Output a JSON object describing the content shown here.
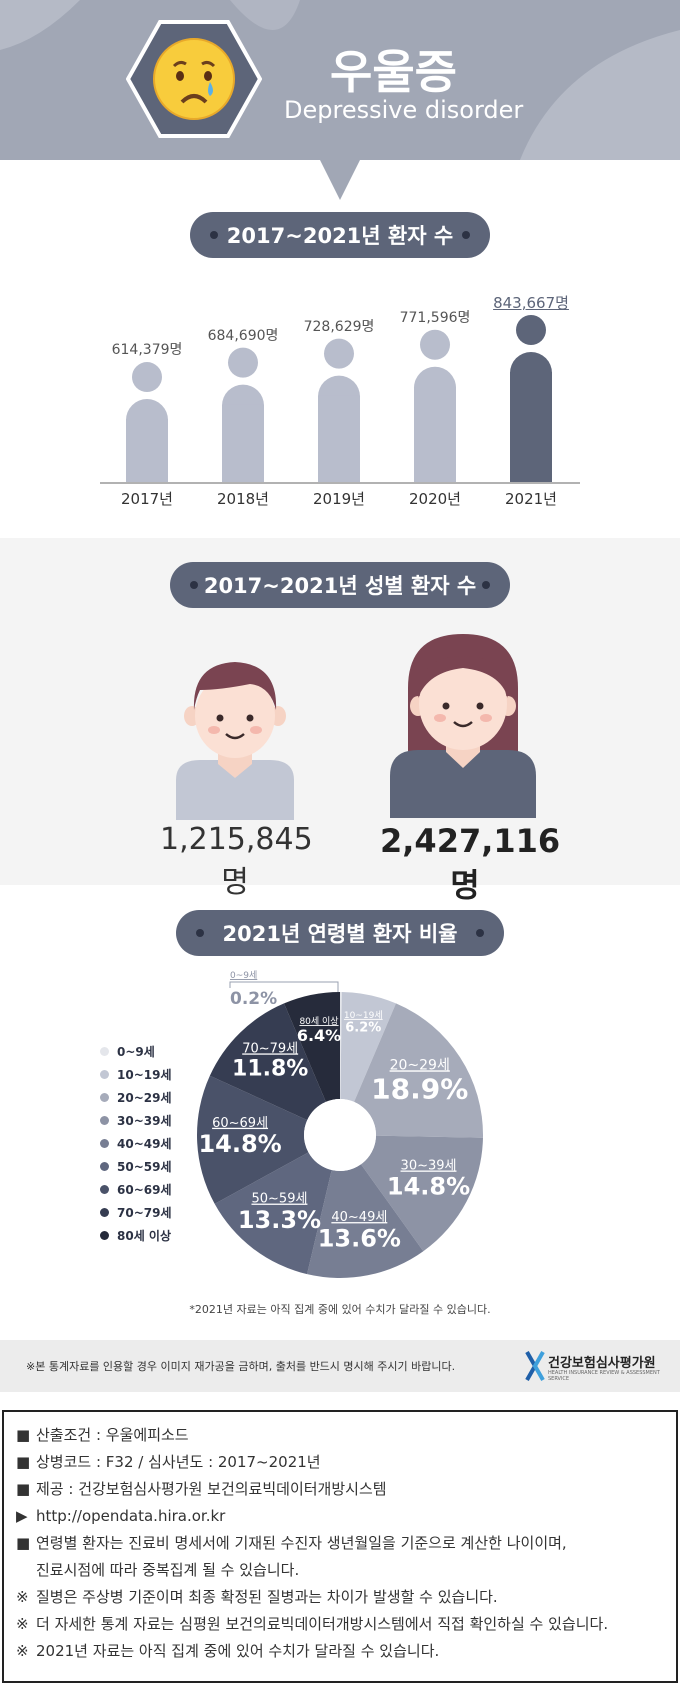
{
  "header": {
    "title_ko": "우울증",
    "title_en": "Depressive disorder",
    "emoji_icon": "crying-face-icon"
  },
  "sections": {
    "patients_title": "2017~2021년 환자 수",
    "gender_title": "2017~2021년 성별 환자 수",
    "age_title": "2021년 연령별 환자 비율"
  },
  "colors": {
    "header_bg": "#a1a7b5",
    "pill": "#5d6579",
    "bar": "#b8bdcc",
    "bar_highlight": "#5d6579"
  },
  "gender": {
    "male_count": "1,215,845명",
    "female_count": "2,427,116명",
    "male_icon": "male-avatar-icon",
    "female_icon": "female-avatar-icon"
  },
  "pie_note": "*2021년 자료는 아직 집계 중에 있어 수치가 달라질 수 있습니다.",
  "footer": {
    "notice": "※본 통계자료를 인용할 경우 이미지 재가공을 금하며, 출처를 반드시 명시해 주시기 바랍니다.",
    "logo_name": "건강보험심사평가원",
    "logo_sub": "HEALTH INSURANCE REVIEW & ASSESSMENT SERVICE"
  },
  "notes": [
    {
      "marker": "■",
      "text": "산출조건 : 우울에피소드"
    },
    {
      "marker": "■",
      "text": "상병코드 : F32 / 심사년도 : 2017~2021년"
    },
    {
      "marker": "■",
      "text": "제공 : 건강보험심사평가원 보건의료빅데이터개방시스템"
    },
    {
      "marker": "▶",
      "text": "http://opendata.hira.or.kr"
    },
    {
      "marker": "■",
      "text": "연령별 환자는 진료비 명세서에 기재된 수진자 생년월일을 기준으로 계산한 나이이며,"
    },
    {
      "marker": "",
      "text": "진료시점에 따라 중복집계 될 수 있습니다."
    },
    {
      "marker": "※",
      "text": "질병은 주상병 기준이며 최종 확정된 질병과는 차이가 발생할 수 있습니다."
    },
    {
      "marker": "※",
      "text": "더 자세한 통계 자료는 심평원 보건의료빅데이터개방시스템에서 직접 확인하실 수 있습니다."
    },
    {
      "marker": "※",
      "text": "2021년 자료는 아직 집계 중에 있어 수치가 달라질 수 있습니다."
    }
  ],
  "chart_data": [
    {
      "type": "bar",
      "title": "2017~2021년 환자 수",
      "categories": [
        "2017년",
        "2018년",
        "2019년",
        "2020년",
        "2021년"
      ],
      "values": [
        614379,
        684690,
        728629,
        771596,
        843667
      ],
      "labels": [
        "614,379명",
        "684,690명",
        "728,629명",
        "771,596명",
        "843,667명"
      ],
      "highlight_index": 4
    },
    {
      "type": "pie",
      "title": "2021년 연령별 환자 비율",
      "categories": [
        "0~9세",
        "10~19세",
        "20~29세",
        "30~39세",
        "40~49세",
        "50~59세",
        "60~69세",
        "70~79세",
        "80세 이상"
      ],
      "values": [
        0.2,
        6.2,
        18.9,
        14.8,
        13.6,
        13.3,
        14.8,
        11.8,
        6.4
      ],
      "labels": [
        "0.2%",
        "6.2%",
        "18.9%",
        "14.8%",
        "13.6%",
        "13.3%",
        "14.8%",
        "11.8%",
        "6.4%"
      ],
      "colors": [
        "#e4e6eb",
        "#c2c7d4",
        "#a6abba",
        "#8d93a5",
        "#777e93",
        "#5f677f",
        "#4a5269",
        "#363d52",
        "#262b3b"
      ],
      "donut": true,
      "legend_position": "left"
    }
  ]
}
